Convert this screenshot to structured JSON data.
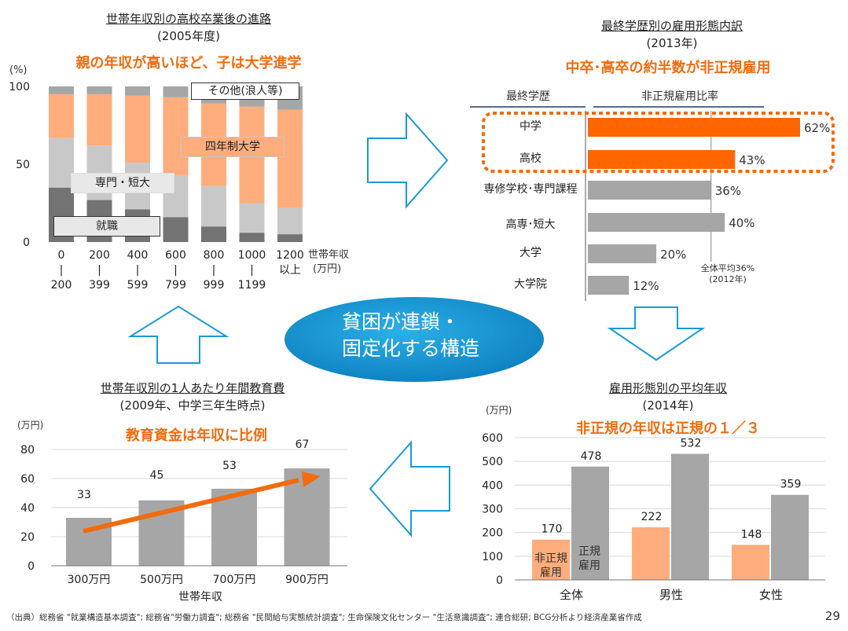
{
  "panel1": {
    "title": "世帯年収別の高校卒業後の進路",
    "subtitle": "(2005年度)",
    "headline": "親の年収が高いほど、子は大学進学",
    "y_unit": "(%)",
    "x_unit_1": "世帯年収",
    "x_unit_2": "(万円)",
    "labels": {
      "other": "その他(浪人等)",
      "univ": "四年制大学",
      "senmon": "専門・短大",
      "job": "就職"
    }
  },
  "panel2": {
    "title": "最終学歴別の雇用形態内訳",
    "subtitle": "(2013年)",
    "headline": "中卒･高卒の約半数が非正規雇用",
    "col_edu": "最終学歴",
    "col_ratio": "非正規雇用比率",
    "avg_label_1": "全体平均36%",
    "avg_label_2": "(2012年)"
  },
  "panel3": {
    "title": "世帯年収別の1人あたり年間教育費",
    "subtitle": "(2009年、中学三年生時点)",
    "headline": "教育資金は年収に比例",
    "y_unit": "(万円)",
    "x_title": "世帯年収"
  },
  "panel4": {
    "title": "雇用形態別の平均年収",
    "subtitle": "(2014年)",
    "headline": "非正規の年収は正規の１／３",
    "y_unit": "(万円)",
    "label_nonreg_1": "非正規",
    "label_nonreg_2": "雇用",
    "label_reg_1": "正規",
    "label_reg_2": "雇用"
  },
  "center": {
    "line1": "貧困が連鎖・",
    "line2": "固定化する構造"
  },
  "footer": "（出典）総務省 \"就業構造基本調査\"; 総務省\"労働力調査\"; 総務省 \"民間給与実態統計調査\"; 生命保険文化センター \"生活意識調査\"; 連合総研; BCG分析より経済産業省作成",
  "page_number": "29",
  "colors": {
    "orange": "#ffad7d",
    "accent": "#f26b0f",
    "bar_hl": "#ff6600",
    "gray": "#a6a6a6",
    "light": "#c8c8c8",
    "dark": "#737373",
    "blue": "#1a9ad6"
  },
  "chart_data": [
    {
      "type": "bar",
      "stacked": true,
      "title": "世帯年収別の高校卒業後の進路",
      "categories": [
        [
          "0",
          "|",
          "200"
        ],
        [
          "200",
          "|",
          "399"
        ],
        [
          "400",
          "|",
          "599"
        ],
        [
          "600",
          "|",
          "799"
        ],
        [
          "800",
          "|",
          "999"
        ],
        [
          "1000",
          "|",
          "1199"
        ],
        [
          "1200",
          "以上"
        ]
      ],
      "series": [
        {
          "name": "就職",
          "values": [
            35,
            27,
            21,
            16,
            10,
            6,
            5
          ]
        },
        {
          "name": "専門・短大",
          "values": [
            32,
            35,
            30,
            27,
            26,
            19,
            17
          ]
        },
        {
          "name": "四年制大学",
          "values": [
            28,
            33,
            43,
            50,
            53,
            62,
            63
          ]
        },
        {
          "name": "その他(浪人等)",
          "values": [
            5,
            5,
            6,
            7,
            11,
            13,
            15
          ]
        }
      ],
      "yticks": [
        "0",
        "50",
        "100"
      ],
      "ylim": [
        0,
        100
      ]
    },
    {
      "type": "bar",
      "orientation": "horizontal",
      "title": "最終学歴別の雇用形態内訳",
      "categories": [
        "中学",
        "高校",
        "専修学校･専門課程",
        "高専･短大",
        "大学",
        "大学院"
      ],
      "values": [
        62,
        43,
        36,
        40,
        20,
        12
      ],
      "value_labels": [
        "62%",
        "43%",
        "36%",
        "40%",
        "20%",
        "12%"
      ],
      "highlight": [
        true,
        true,
        false,
        false,
        false,
        false
      ],
      "average": 36,
      "xlim": [
        0,
        70
      ]
    },
    {
      "type": "bar",
      "title": "世帯年収別の1人あたり年間教育費",
      "categories": [
        "300万円",
        "500万円",
        "700万円",
        "900万円"
      ],
      "values": [
        33,
        45,
        53,
        67
      ],
      "value_labels": [
        "33",
        "45",
        "53",
        "67"
      ],
      "yticks": [
        "0",
        "20",
        "40",
        "60",
        "80"
      ],
      "ylim": [
        0,
        80
      ]
    },
    {
      "type": "bar",
      "title": "雇用形態別の平均年収",
      "categories": [
        "全体",
        "男性",
        "女性"
      ],
      "series": [
        {
          "name": "非正規雇用",
          "values": [
            170,
            222,
            148
          ],
          "labels": [
            "170",
            "222",
            "148"
          ]
        },
        {
          "name": "正規雇用",
          "values": [
            478,
            532,
            359
          ],
          "labels": [
            "478",
            "532",
            "359"
          ]
        }
      ],
      "yticks": [
        "0",
        "100",
        "200",
        "300",
        "400",
        "500",
        "600"
      ],
      "ylim": [
        0,
        600
      ]
    }
  ]
}
